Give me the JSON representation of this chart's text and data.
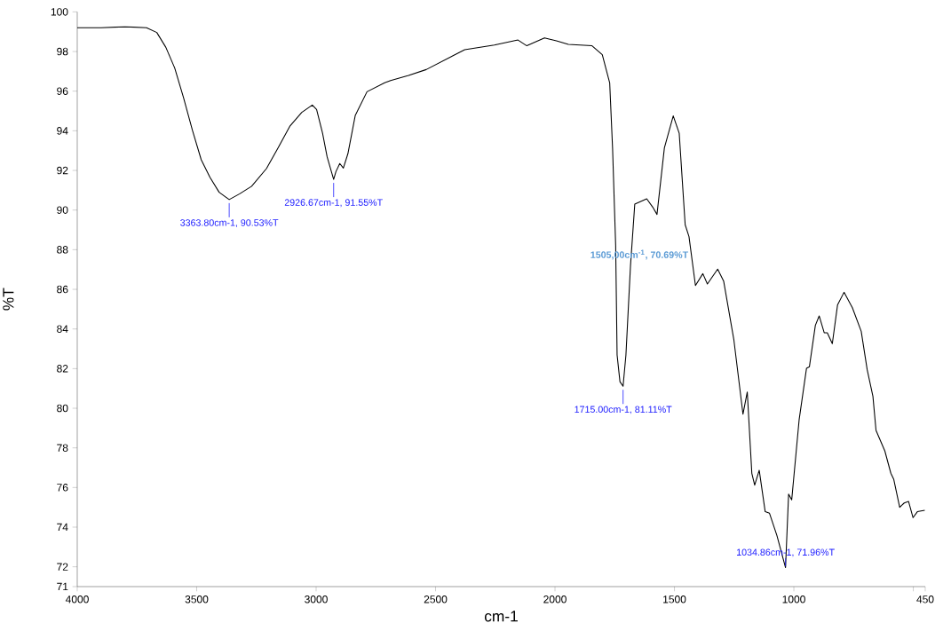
{
  "chart_data": {
    "type": "line",
    "xlabel": "cm-1",
    "ylabel": "%T",
    "xlim": [
      4000,
      450
    ],
    "ylim": [
      71,
      100
    ],
    "xticks": [
      4000,
      3500,
      3000,
      2500,
      2000,
      1500,
      1000,
      {
        "value": 500,
        "label": null
      },
      450
    ],
    "yticks": [
      71,
      72,
      74,
      76,
      78,
      80,
      82,
      84,
      86,
      88,
      90,
      92,
      94,
      96,
      98,
      100
    ],
    "series": [
      {
        "color": "#000000",
        "x": [
          4000,
          3900,
          3800,
          3710,
          3667,
          3629,
          3592,
          3555,
          3518,
          3481,
          3444,
          3406,
          3363.8,
          3320,
          3270,
          3208,
          3159,
          3109,
          3060,
          3016,
          2998,
          2973,
          2954,
          2926.67,
          2917,
          2901,
          2886,
          2867,
          2836,
          2787,
          2713,
          2688,
          2613,
          2539,
          2378,
          2254,
          2155,
          2118,
          2044,
          1994,
          1944,
          1845,
          1802,
          1771,
          1759,
          1746,
          1740,
          1728,
          1715,
          1703,
          1684,
          1666,
          1616,
          1591,
          1573,
          1542,
          1505,
          1480,
          1455,
          1439,
          1412,
          1381,
          1362,
          1319,
          1294,
          1251,
          1213,
          1195,
          1176,
          1164,
          1145,
          1120,
          1102,
          1071,
          1034.86,
          1022,
          1009,
          978,
          947,
          935,
          910,
          894,
          873,
          860,
          839,
          817,
          790,
          755,
          718,
          693,
          669,
          656,
          619,
          594,
          582,
          557,
          538,
          520,
          501,
          483,
          452
        ],
        "values": [
          99.2,
          99.2,
          99.25,
          99.2,
          98.96,
          98.21,
          97.17,
          95.67,
          94.03,
          92.54,
          91.64,
          90.9,
          90.53,
          90.82,
          91.2,
          92.09,
          93.14,
          94.25,
          94.93,
          95.3,
          95.08,
          93.88,
          92.69,
          91.55,
          91.94,
          92.35,
          92.12,
          92.84,
          94.78,
          95.97,
          96.42,
          96.54,
          96.79,
          97.09,
          98.09,
          98.33,
          98.58,
          98.29,
          98.69,
          98.54,
          98.36,
          98.29,
          97.84,
          96.42,
          93.14,
          88.21,
          82.69,
          81.34,
          81.11,
          82.69,
          87.17,
          90.3,
          90.57,
          90.15,
          89.78,
          93.14,
          94.75,
          93.88,
          89.26,
          88.66,
          86.19,
          86.79,
          86.27,
          87.02,
          86.42,
          83.44,
          79.7,
          80.82,
          76.72,
          76.12,
          76.87,
          74.78,
          74.7,
          73.58,
          71.96,
          75.67,
          75.38,
          79.41,
          82.02,
          82.09,
          84.18,
          84.66,
          83.81,
          83.81,
          83.26,
          85.22,
          85.85,
          85.07,
          83.88,
          81.94,
          80.6,
          78.88,
          77.84,
          76.72,
          76.42,
          75.0,
          75.22,
          75.3,
          74.48,
          74.78,
          74.85
        ]
      }
    ],
    "annotations": [
      {
        "text": "3363.80cm-1, 90.53%T",
        "x": 3363.8,
        "y": 90.53
      },
      {
        "text": "2926.67cm-1, 91.55%T",
        "x": 2926.67,
        "y": 91.55
      },
      {
        "text": "1715.00cm-1, 81.11%T",
        "x": 1715,
        "y": 81.11
      },
      {
        "text": "1034.86cm-1, 71.96%T",
        "x": 1034.86,
        "y": 71.96
      },
      "1505,00cm$^{-1}$, 70.69%T"
    ]
  }
}
